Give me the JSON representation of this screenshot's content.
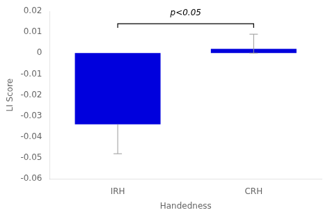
{
  "chart_data": {
    "type": "bar",
    "categories": [
      "IRH",
      "CRH"
    ],
    "values": [
      -0.034,
      0.002
    ],
    "color": "#0000DD",
    "error_bars": {
      "plus": [
        0.0,
        0.007
      ],
      "minus": [
        0.014,
        0.002
      ],
      "color": "#999999"
    },
    "xlabel": "Handedness",
    "ylabel": "LI Score",
    "ylim": [
      -0.06,
      0.02
    ],
    "yticks": [
      -0.06,
      -0.05,
      -0.04,
      -0.03,
      -0.02,
      -0.01,
      0,
      0.01,
      0.02
    ],
    "annotations": [
      {
        "text": "p<0.05",
        "y": 0.017,
        "bracket": {
          "from": "IRH",
          "to": "CRH",
          "y": 0.014,
          "drop": 0.002
        }
      }
    ],
    "grid": false
  }
}
